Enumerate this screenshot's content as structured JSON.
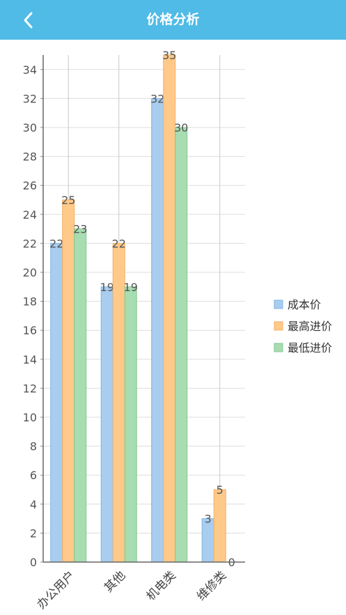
{
  "header": {
    "title": "价格分析",
    "back_icon": "chevron-left-icon"
  },
  "colors": {
    "header_bg": "#4fbbe6",
    "series": [
      "#a8cdef",
      "#ffc98a",
      "#a8dcb1"
    ],
    "series_stroke": [
      "#7fb3e0",
      "#f5b060",
      "#84c793"
    ]
  },
  "chart_data": {
    "type": "bar",
    "categories": [
      "办公用户",
      "其他",
      "机电类",
      "维修类"
    ],
    "series": [
      {
        "name": "成本价",
        "values": [
          22,
          19,
          32,
          3
        ]
      },
      {
        "name": "最高进价",
        "values": [
          25,
          22,
          35,
          5
        ]
      },
      {
        "name": "最低进价",
        "values": [
          23,
          19,
          30,
          0
        ]
      }
    ],
    "yticks": [
      0,
      2,
      4,
      6,
      8,
      10,
      12,
      14,
      16,
      18,
      20,
      22,
      24,
      26,
      28,
      30,
      32,
      34
    ],
    "ylim": [
      0,
      35
    ],
    "grid": true,
    "legend_position": "right",
    "data_labels": true
  }
}
